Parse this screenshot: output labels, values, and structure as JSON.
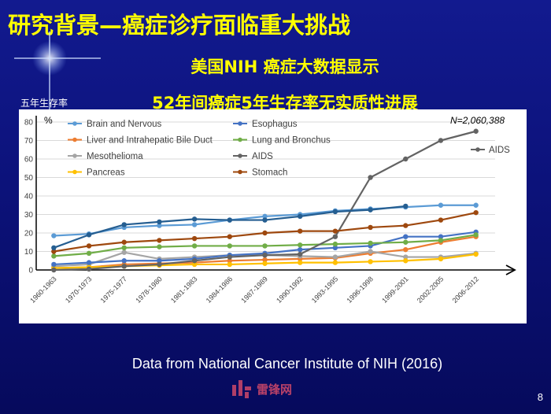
{
  "slide": {
    "title": "研究背景—癌症诊疗面临重大挑战",
    "subtitle_1": "美国NIH 癌症大数据显示",
    "subtitle_2": "52年间癌症5年生存率无实质性进展",
    "source": "Data from National Cancer Institute of NIH (2016)",
    "watermark": "雷锋网",
    "page_number": "8",
    "colors": {
      "background": "#0c127a",
      "title": "#ffff00"
    }
  },
  "chart_data": {
    "type": "line",
    "ylabel": "五年生存率",
    "yunit": "%",
    "ylim": [
      0,
      80
    ],
    "yticks": [
      0,
      10,
      20,
      30,
      40,
      50,
      60,
      70,
      80
    ],
    "annotation": "N=2,060,388",
    "categories": [
      "1960-1963",
      "1970-1973",
      "1975-1977",
      "1978-1980",
      "1981-1983",
      "1984-1986",
      "1987-1989",
      "1990-1992",
      "1993-1995",
      "1996-1998",
      "1999-2001",
      "2002-2005",
      "2006-2012"
    ],
    "grid": true,
    "legend_position": "top",
    "series": [
      {
        "name": "Brain and Nervous",
        "color": "#5b9bd5",
        "values": [
          18.5,
          19.5,
          23,
          24,
          24.5,
          27,
          29,
          30,
          32,
          33,
          34,
          35,
          35
        ]
      },
      {
        "name": "Liver and Intrahepatic Bile Duct",
        "color": "#ed7d31",
        "values": [
          1,
          1.5,
          3,
          3.5,
          4,
          5,
          5.5,
          6,
          6.5,
          9,
          11,
          15,
          18
        ]
      },
      {
        "name": "Mesothelioma",
        "color": "#a5a5a5",
        "values": [
          2,
          3,
          9.5,
          6,
          7,
          8,
          8,
          7.5,
          7,
          10,
          7,
          7,
          9
        ]
      },
      {
        "name": "Pancreas",
        "color": "#ffc000",
        "values": [
          1,
          1.5,
          2,
          2.5,
          3,
          3,
          3.5,
          4,
          4,
          4.5,
          5,
          6,
          8.5
        ]
      },
      {
        "name": "Esophagus",
        "color": "#4472c4",
        "values": [
          3,
          4,
          5,
          5,
          6,
          8,
          9,
          11,
          12,
          13,
          18,
          18,
          20.5
        ]
      },
      {
        "name": "Lung and Bronchus",
        "color": "#70ad47",
        "values": [
          7.5,
          9,
          12,
          12.5,
          13,
          13,
          13,
          13.5,
          14,
          14.5,
          15,
          16,
          19
        ]
      },
      {
        "name": "AIDS",
        "color": "#636363",
        "values": [
          0,
          0.5,
          2,
          3,
          5,
          7,
          8,
          8.5,
          18,
          50,
          60,
          70,
          75
        ]
      },
      {
        "name": "Stomach",
        "color": "#9e480e",
        "values": [
          10,
          13,
          15,
          16,
          17,
          18,
          20,
          21,
          21,
          23,
          24,
          27,
          31
        ]
      },
      {
        "name": "",
        "color": "#255e91",
        "values": [
          12,
          19,
          24.5,
          26,
          27.5,
          27,
          27,
          29,
          31.5,
          32.5,
          34.5,
          null,
          null
        ]
      }
    ],
    "series_label": {
      "text": "AIDS"
    }
  }
}
